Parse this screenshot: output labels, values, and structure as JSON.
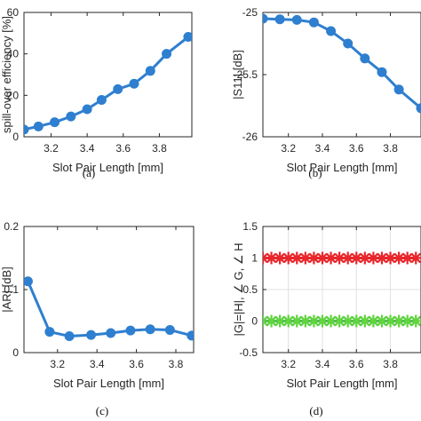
{
  "chart_data": [
    {
      "type": "line",
      "caption": "(a)",
      "xlabel": "Slot Pair Length [mm]",
      "ylabel": "spill-over efficiency [%]",
      "xlim": [
        3.05,
        3.98
      ],
      "ylim": [
        0,
        60
      ],
      "xticks": [
        "3.2",
        "3.4",
        "3.6",
        "3.8"
      ],
      "xtick_values": [
        3.2,
        3.4,
        3.6,
        3.8
      ],
      "yticks": [
        "0",
        "20",
        "40",
        "60"
      ],
      "ytick_values": [
        0,
        20,
        40,
        60
      ],
      "grid": false,
      "series": [
        {
          "color": "#2f7fd0",
          "marker": "circle",
          "x": [
            3.05,
            3.13,
            3.22,
            3.31,
            3.4,
            3.48,
            3.57,
            3.66,
            3.75,
            3.84,
            3.96
          ],
          "y": [
            3.5,
            5.0,
            7.0,
            9.8,
            13.3,
            17.8,
            23.0,
            25.6,
            31.8,
            40.0,
            48.2
          ]
        }
      ]
    },
    {
      "type": "line",
      "caption": "(b)",
      "xlabel": "Slot Pair Length [mm]",
      "ylabel": "|S11| [dB]",
      "xlim": [
        3.05,
        3.98
      ],
      "ylim": [
        -26,
        -25
      ],
      "xticks": [
        "3.2",
        "3.4",
        "3.6",
        "3.8"
      ],
      "xtick_values": [
        3.2,
        3.4,
        3.6,
        3.8
      ],
      "yticks": [
        "-25",
        "-25.5",
        "-26"
      ],
      "ytick_values": [
        -25,
        -25.5,
        -26
      ],
      "grid": false,
      "series": [
        {
          "color": "#2f7fd0",
          "marker": "circle",
          "x": [
            3.05,
            3.15,
            3.25,
            3.35,
            3.45,
            3.55,
            3.65,
            3.75,
            3.85,
            3.98
          ],
          "y": [
            -25.05,
            -25.055,
            -25.06,
            -25.08,
            -25.15,
            -25.25,
            -25.37,
            -25.48,
            -25.62,
            -25.77
          ]
        }
      ]
    },
    {
      "type": "line",
      "caption": "(c)",
      "xlabel": "Slot Pair Length [mm]",
      "ylabel": "|AR| [dB]",
      "xlim": [
        3.03,
        3.89
      ],
      "ylim": [
        0,
        0.2
      ],
      "xticks": [
        "3.2",
        "3.4",
        "3.6",
        "3.8"
      ],
      "xtick_values": [
        3.2,
        3.4,
        3.6,
        3.8
      ],
      "yticks": [
        "0",
        "0.1",
        "0.2"
      ],
      "ytick_values": [
        0,
        0.1,
        0.2
      ],
      "grid": false,
      "series": [
        {
          "color": "#2f7fd0",
          "marker": "circle",
          "x": [
            3.05,
            3.16,
            3.26,
            3.37,
            3.47,
            3.57,
            3.67,
            3.77,
            3.88
          ],
          "y": [
            0.113,
            0.033,
            0.026,
            0.028,
            0.031,
            0.035,
            0.037,
            0.036,
            0.027
          ]
        }
      ]
    },
    {
      "type": "scatter",
      "caption": "(d)",
      "xlabel": "Slot Pair Length [mm]",
      "ylabel": "|G|=|H|, ∠ G, ∠ H",
      "xlim": [
        3.05,
        3.98
      ],
      "ylim": [
        -0.5,
        1.5
      ],
      "xticks": [
        "3.2",
        "3.4",
        "3.6",
        "3.8"
      ],
      "xtick_values": [
        3.2,
        3.4,
        3.6,
        3.8
      ],
      "yticks": [
        "1.5",
        "1",
        "0.5",
        "0",
        "-0.5"
      ],
      "ytick_values": [
        1.5,
        1,
        0.5,
        0,
        -0.5
      ],
      "grid": true,
      "series": [
        {
          "color": "#e8262b",
          "marker": "asterisk",
          "line": true,
          "x": [
            3.05,
            3.1,
            3.15,
            3.2,
            3.25,
            3.3,
            3.35,
            3.4,
            3.45,
            3.5,
            3.55,
            3.6,
            3.65,
            3.7,
            3.75,
            3.8,
            3.85,
            3.9,
            3.95
          ],
          "y": [
            1,
            1,
            1,
            1,
            1,
            1,
            1,
            1,
            1,
            1,
            1,
            1,
            1,
            1,
            1,
            1,
            1,
            1,
            1
          ]
        },
        {
          "color": "#2a3fd8",
          "marker": "x",
          "line": true,
          "x": [
            3.05,
            3.1,
            3.15,
            3.2,
            3.25,
            3.3,
            3.35,
            3.4,
            3.45,
            3.5,
            3.55,
            3.6,
            3.65,
            3.7,
            3.75,
            3.8,
            3.85,
            3.9,
            3.95
          ],
          "y": [
            0,
            0,
            0,
            0,
            0,
            0,
            0,
            0,
            0,
            0,
            0,
            0,
            0,
            0,
            0,
            0,
            0,
            0,
            0
          ]
        },
        {
          "color": "#5fd63a",
          "marker": "asterisk",
          "line": false,
          "x": [
            3.05,
            3.1,
            3.15,
            3.2,
            3.25,
            3.3,
            3.35,
            3.4,
            3.45,
            3.5,
            3.55,
            3.6,
            3.65,
            3.7,
            3.75,
            3.8,
            3.85,
            3.9,
            3.95
          ],
          "y": [
            0,
            0,
            0,
            0,
            0,
            0,
            0,
            0,
            0,
            0,
            0,
            0,
            0,
            0,
            0,
            0,
            0,
            0,
            0
          ]
        }
      ]
    }
  ]
}
